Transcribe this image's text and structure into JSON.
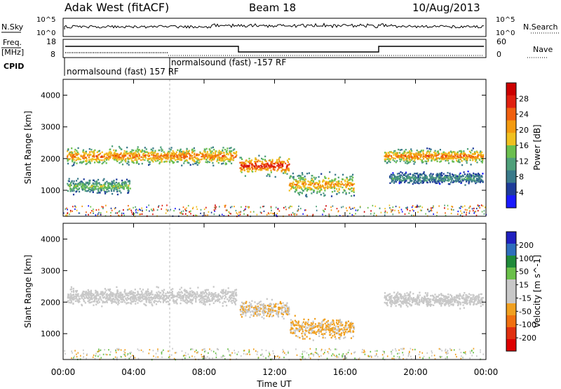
{
  "header": {
    "station": "Adak West (fitACF)",
    "beam": "Beam 18",
    "date": "10/Aug/2013"
  },
  "strip_labels": {
    "nsky": "N.Sky",
    "nsearch": "N.Search",
    "freq": "Freq.",
    "freq_unit": "[MHz]",
    "nave": "Nave",
    "cpid": "CPID"
  },
  "cpid_segments": [
    {
      "label": "normalsound (fast) 157 RF"
    },
    {
      "label": "normalsound (fast) -157 RF"
    }
  ],
  "strip_ticks": {
    "nsky": [
      "10^5",
      "10^0"
    ],
    "nsearch": [
      "10^5",
      "10^0"
    ],
    "freq": [
      "18",
      "8"
    ],
    "nave": [
      "60",
      "0"
    ]
  },
  "x_ticks": [
    "00:00",
    "04:00",
    "08:00",
    "12:00",
    "16:00",
    "20:00",
    "00:00"
  ],
  "x_label": "Time UT",
  "colors": {
    "power_scale": [
      "#1a1aff",
      "#1e3c9a",
      "#3a7a8a",
      "#4fa07a",
      "#6bbf4f",
      "#f0c020",
      "#f39a10",
      "#f06010",
      "#e02010",
      "#cc0000"
    ],
    "velocity_scale": [
      "#2020c0",
      "#2e6ebd",
      "#1f8a3a",
      "#6ac04a",
      "#c8c8c8",
      "#c8c8c8",
      "#f0a020",
      "#f07010",
      "#e03010",
      "#dd0000"
    ]
  },
  "chart_data": [
    {
      "type": "heatmap",
      "title": "",
      "quantity": "Power",
      "ylabel": "Slant Range [km]",
      "xlabel": "Time UT",
      "yticks": [
        "1000",
        "2000",
        "3000",
        "4000"
      ],
      "ylim": [
        180,
        4500
      ],
      "xlim_hours": [
        0,
        24
      ],
      "colorbar": {
        "label": "Power [dB]",
        "ticks": [
          "4",
          "8",
          "12",
          "16",
          "20",
          "24",
          "28"
        ],
        "range": [
          0,
          30
        ]
      },
      "echo_bands": [
        {
          "t_start": 0.2,
          "t_end": 9.8,
          "range_center": 2100,
          "width": 350,
          "peak_power": 22
        },
        {
          "t_start": 0.2,
          "t_end": 3.8,
          "range_center": 1150,
          "width": 300,
          "peak_power": 14
        },
        {
          "t_start": 10.0,
          "t_end": 12.8,
          "range_center": 1800,
          "width": 400,
          "peak_power": 26
        },
        {
          "t_start": 12.8,
          "t_end": 16.5,
          "range_center": 1200,
          "width": 450,
          "peak_power": 20
        },
        {
          "t_start": 18.2,
          "t_end": 23.8,
          "range_center": 2100,
          "width": 300,
          "peak_power": 22
        },
        {
          "t_start": 18.5,
          "t_end": 23.8,
          "range_center": 1400,
          "width": 250,
          "peak_power": 10
        }
      ]
    },
    {
      "type": "heatmap",
      "title": "",
      "quantity": "Velocity",
      "ylabel": "Slant Range [km]",
      "xlabel": "Time UT",
      "yticks": [
        "1000",
        "2000",
        "3000",
        "4000"
      ],
      "ylim": [
        180,
        4500
      ],
      "xlim_hours": [
        0,
        24
      ],
      "colorbar": {
        "label": "Velocity [m s^-1]",
        "ticks": [
          "200",
          "100",
          "50",
          "15",
          "-15",
          "-50",
          "-100",
          "-200"
        ],
        "range": [
          -250,
          250
        ]
      },
      "echo_bands": [
        {
          "t_start": 0.2,
          "t_end": 9.8,
          "range_center": 2200,
          "width": 350,
          "velocity": 0
        },
        {
          "t_start": 10.0,
          "t_end": 12.8,
          "range_center": 1800,
          "width": 350,
          "velocity": -40
        },
        {
          "t_start": 12.8,
          "t_end": 16.5,
          "range_center": 1200,
          "width": 450,
          "velocity": -60
        },
        {
          "t_start": 18.2,
          "t_end": 23.8,
          "range_center": 2100,
          "width": 300,
          "velocity": 0
        }
      ]
    }
  ]
}
